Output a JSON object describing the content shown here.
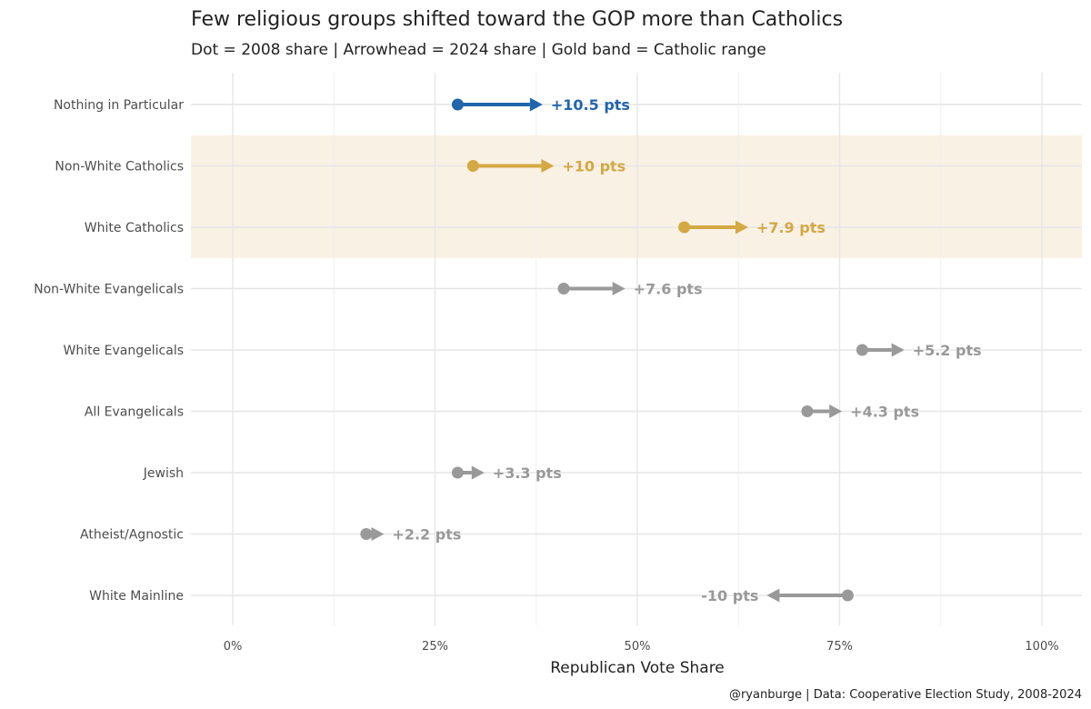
{
  "chart_data": {
    "type": "dumbbell-arrow",
    "title": "Few religious groups shifted toward the GOP more than Catholics",
    "subtitle": "Dot = 2008 share | Arrowhead = 2024 share | Gold band = Catholic range",
    "xlabel": "Republican Vote Share",
    "xlim": [
      -0.05,
      1.05
    ],
    "xticks": [
      {
        "value": 0,
        "label": "0%"
      },
      {
        "value": 0.25,
        "label": "25%"
      },
      {
        "value": 0.5,
        "label": "50%"
      },
      {
        "value": 0.75,
        "label": "75%"
      },
      {
        "value": 1.0,
        "label": "100%"
      }
    ],
    "caption": "@ryanburge | Data: Cooperative Election Study, 2008-2024",
    "highlight_band": {
      "categories": [
        "Non-White Catholics",
        "White Catholics"
      ],
      "color": "#f9f1e4"
    },
    "colors": {
      "highlight_blue": "#2166ac",
      "catholic_gold": "#d4a843",
      "other_gray": "#999999"
    },
    "groups": [
      {
        "name": "Nothing in Particular",
        "y2008": 0.278,
        "y2024": 0.383,
        "label": "+10.5 pts",
        "color": "#2166ac"
      },
      {
        "name": "Non-White Catholics",
        "y2008": 0.297,
        "y2024": 0.397,
        "label": "+10 pts",
        "color": "#d4a843"
      },
      {
        "name": "White Catholics",
        "y2008": 0.558,
        "y2024": 0.637,
        "label": "+7.9 pts",
        "color": "#d4a843"
      },
      {
        "name": "Non-White Evangelicals",
        "y2008": 0.409,
        "y2024": 0.485,
        "label": "+7.6 pts",
        "color": "#999999"
      },
      {
        "name": "White Evangelicals",
        "y2008": 0.778,
        "y2024": 0.83,
        "label": "+5.2 pts",
        "color": "#999999"
      },
      {
        "name": "All Evangelicals",
        "y2008": 0.71,
        "y2024": 0.753,
        "label": "+4.3 pts",
        "color": "#999999"
      },
      {
        "name": "Jewish",
        "y2008": 0.278,
        "y2024": 0.311,
        "label": "+3.3 pts",
        "color": "#999999"
      },
      {
        "name": "Atheist/Agnostic",
        "y2008": 0.165,
        "y2024": 0.187,
        "label": "+2.2 pts",
        "color": "#999999"
      },
      {
        "name": "White Mainline",
        "y2008": 0.76,
        "y2024": 0.66,
        "label": "-10 pts",
        "color": "#999999"
      }
    ]
  }
}
